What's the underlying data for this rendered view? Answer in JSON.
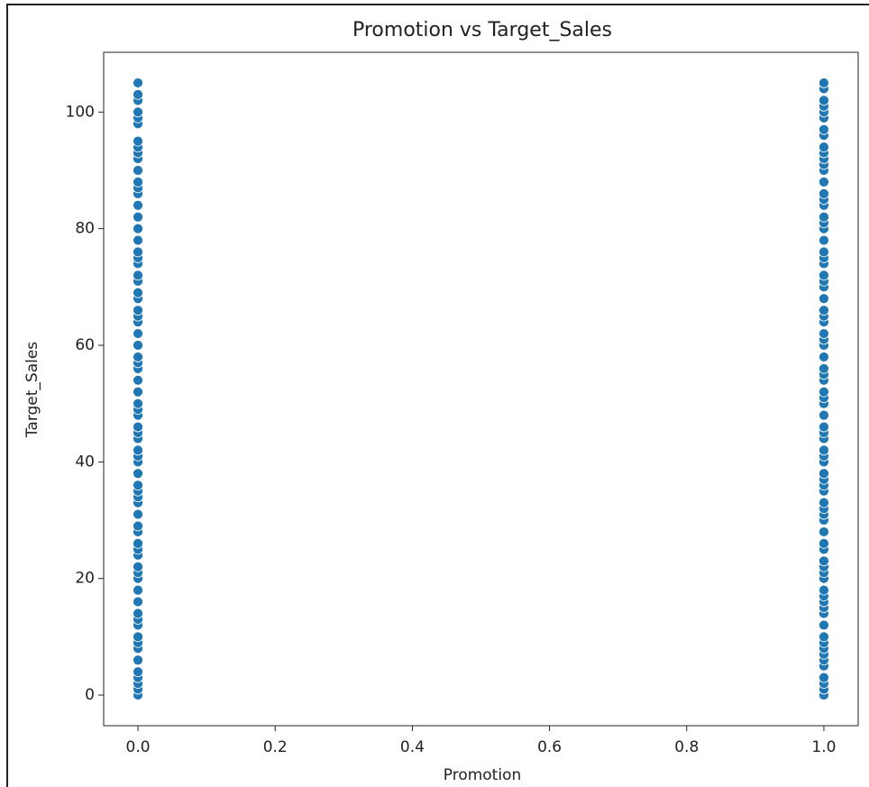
{
  "chart_data": {
    "type": "scatter",
    "title": "Promotion vs Target_Sales",
    "xlabel": "Promotion",
    "ylabel": "Target_Sales",
    "color": "#1f77b4",
    "x": [
      0,
      0,
      0,
      0,
      0,
      0,
      0,
      0,
      0,
      0,
      0,
      0,
      0,
      0,
      0,
      0,
      0,
      0,
      0,
      0,
      0,
      0,
      0,
      0,
      0,
      0,
      0,
      0,
      0,
      0,
      0,
      0,
      0,
      0,
      0,
      0,
      0,
      0,
      0,
      0,
      0,
      0,
      0,
      0,
      0,
      0,
      0,
      0,
      0,
      0,
      0,
      0,
      0,
      0,
      0,
      0,
      0,
      0,
      0,
      0,
      0,
      0,
      0,
      0,
      0,
      0,
      0,
      0,
      0,
      0,
      0,
      0,
      1,
      1,
      1,
      1,
      1,
      1,
      1,
      1,
      1,
      1,
      1,
      1,
      1,
      1,
      1,
      1,
      1,
      1,
      1,
      1,
      1,
      1,
      1,
      1,
      1,
      1,
      1,
      1,
      1,
      1,
      1,
      1,
      1,
      1,
      1,
      1,
      1,
      1,
      1,
      1,
      1,
      1,
      1,
      1,
      1,
      1,
      1,
      1,
      1,
      1,
      1,
      1,
      1,
      1,
      1,
      1,
      1,
      1,
      1,
      1,
      1,
      1,
      1,
      1,
      1,
      1,
      1,
      1,
      1,
      1,
      1,
      1,
      1,
      1,
      1,
      1,
      1,
      1,
      1
    ],
    "values": [
      0,
      1,
      2,
      3,
      4,
      6,
      8,
      9,
      10,
      12,
      13,
      14,
      16,
      18,
      20,
      21,
      22,
      24,
      25,
      26,
      28,
      29,
      31,
      33,
      34,
      35,
      36,
      38,
      40,
      41,
      42,
      44,
      45,
      46,
      48,
      49,
      50,
      52,
      54,
      56,
      57,
      58,
      60,
      62,
      64,
      65,
      66,
      68,
      69,
      71,
      72,
      74,
      75,
      76,
      78,
      80,
      82,
      84,
      86,
      87,
      88,
      90,
      92,
      93,
      94,
      95,
      98,
      99,
      100,
      102,
      103,
      105,
      0,
      1,
      2,
      3,
      5,
      6,
      7,
      8,
      9,
      10,
      12,
      14,
      15,
      16,
      17,
      18,
      20,
      21,
      22,
      23,
      25,
      26,
      28,
      30,
      31,
      32,
      33,
      35,
      36,
      37,
      38,
      40,
      41,
      42,
      44,
      45,
      46,
      48,
      50,
      51,
      52,
      54,
      55,
      56,
      58,
      60,
      61,
      62,
      64,
      65,
      66,
      68,
      70,
      71,
      72,
      74,
      75,
      76,
      78,
      80,
      81,
      82,
      84,
      85,
      86,
      88,
      90,
      91,
      92,
      93,
      94,
      96,
      97,
      99,
      100,
      101,
      102,
      104,
      105
    ],
    "xlim": [
      -0.05,
      1.05
    ],
    "ylim": [
      -5.25,
      110.25
    ],
    "xticks": [
      {
        "value": 0,
        "label": "0.0"
      },
      {
        "value": 0.2,
        "label": "0.2"
      },
      {
        "value": 0.4,
        "label": "0.4"
      },
      {
        "value": 0.6,
        "label": "0.6"
      },
      {
        "value": 0.8,
        "label": "0.8"
      },
      {
        "value": 1,
        "label": "1.0"
      }
    ],
    "yticks": [
      0,
      20,
      40,
      60,
      80,
      100
    ]
  }
}
